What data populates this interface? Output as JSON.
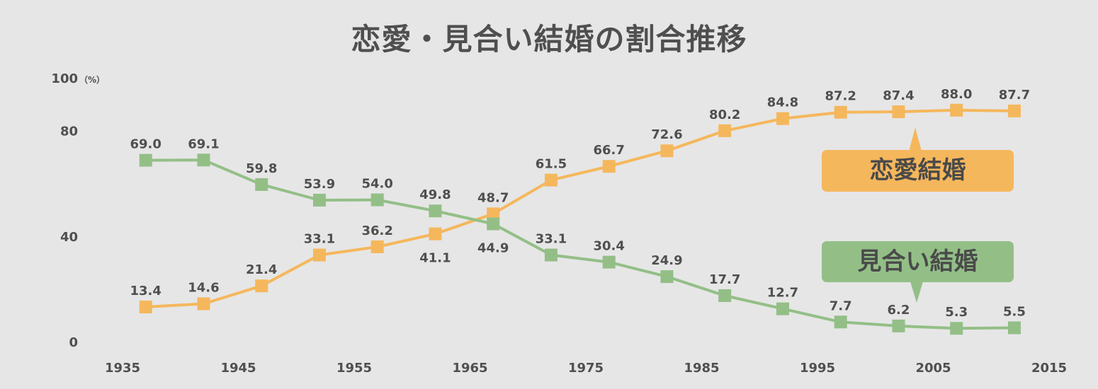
{
  "chart_data": {
    "type": "line",
    "title": "恋愛・見合い結婚の割合推移",
    "unit_label": "（%）",
    "yticks": [
      "0",
      "40",
      "80",
      "100"
    ],
    "xtick_labels": [
      "1935",
      "1945",
      "1955",
      "1965",
      "1975",
      "1985",
      "1995",
      "2005",
      "2015"
    ],
    "ylim": [
      0,
      100
    ],
    "xlim": [
      1935,
      2015
    ],
    "x": [
      1937,
      1942,
      1947,
      1952,
      1957,
      1962,
      1967,
      1972,
      1977,
      1982,
      1987,
      1992,
      1997,
      2002,
      2007,
      2012
    ],
    "series": [
      {
        "name": "恋愛結婚",
        "color": "#f5b75c",
        "values": [
          13.4,
          14.6,
          21.4,
          33.1,
          36.2,
          41.1,
          48.7,
          61.5,
          66.7,
          72.6,
          80.2,
          84.8,
          87.2,
          87.4,
          88.0,
          87.7
        ],
        "labels": [
          "13.4",
          "14.6",
          "21.4",
          "33.1",
          "36.2",
          "41.1",
          "48.7",
          "61.5",
          "66.7",
          "72.6",
          "80.2",
          "84.8",
          "87.2",
          "87.4",
          "88.0",
          "87.7"
        ]
      },
      {
        "name": "見合い結婚",
        "color": "#93bf87",
        "values": [
          69.0,
          69.1,
          59.8,
          53.9,
          54.0,
          49.8,
          44.9,
          33.1,
          30.4,
          24.9,
          17.7,
          12.7,
          7.7,
          6.2,
          5.3,
          5.5
        ],
        "labels": [
          "69.0",
          "69.1",
          "59.8",
          "53.9",
          "54.0",
          "49.8",
          "44.9",
          "33.1",
          "30.4",
          "24.9",
          "17.7",
          "12.7",
          "7.7",
          "6.2",
          "5.3",
          "5.5"
        ]
      }
    ]
  }
}
